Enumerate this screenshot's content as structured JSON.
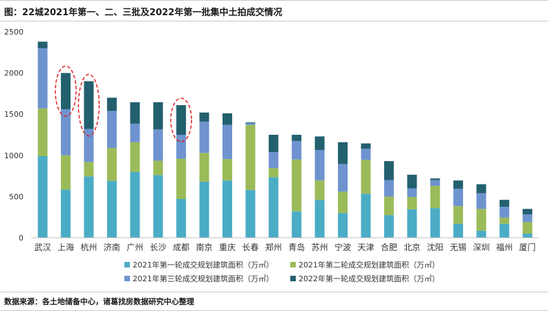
{
  "figure": {
    "title": "图：22城2021年第一、二、三批及2022年第一批集中土拍成交情况",
    "source": "数据来源：各土地储备中心，诸葛找房数据研究中心整理"
  },
  "colors": {
    "series1": "#4bacc6",
    "series2": "#9bbb59",
    "series3": "#6e93cf",
    "series4": "#23606e",
    "axis": "#bfbfbf",
    "highlight": "#e02020"
  },
  "chart_data": {
    "type": "bar",
    "stacked": true,
    "title": "",
    "xlabel": "",
    "ylabel": "",
    "ylim": [
      0,
      2500
    ],
    "yticks": [
      0,
      500,
      1000,
      1500,
      2000,
      2500
    ],
    "grid": false,
    "legend_position": "bottom",
    "categories": [
      "武汉",
      "上海",
      "杭州",
      "济南",
      "广州",
      "长沙",
      "成都",
      "南京",
      "重庆",
      "长春",
      "郑州",
      "青岛",
      "苏州",
      "宁波",
      "天津",
      "合肥",
      "北京",
      "沈阳",
      "无锡",
      "深圳",
      "福州",
      "厦门"
    ],
    "series": [
      {
        "name": "2021年第一轮成交规划建筑面积（万㎡）",
        "color": "#4bacc6",
        "values": [
          990,
          585,
          745,
          690,
          800,
          760,
          470,
          680,
          695,
          580,
          735,
          320,
          460,
          300,
          535,
          275,
          345,
          360,
          170,
          85,
          170,
          50
        ]
      },
      {
        "name": "2021年第二轮成交规划建筑面积（万㎡）",
        "color": "#9bbb59",
        "values": [
          580,
          415,
          175,
          400,
          360,
          175,
          490,
          350,
          260,
          790,
          110,
          630,
          235,
          260,
          410,
          225,
          150,
          270,
          215,
          265,
          75,
          140
        ]
      },
      {
        "name": "2021年第三轮成交规划建筑面积（万㎡）",
        "color": "#6e93cf",
        "values": [
          730,
          560,
          400,
          450,
          225,
          380,
          290,
          380,
          415,
          20,
          195,
          225,
          370,
          335,
          135,
          200,
          105,
          70,
          210,
          190,
          130,
          95
        ]
      },
      {
        "name": "2022年第一轮成交规划建筑面积（万㎡）",
        "color": "#23606e",
        "values": [
          80,
          440,
          580,
          160,
          260,
          330,
          360,
          110,
          140,
          10,
          210,
          75,
          165,
          265,
          65,
          230,
          165,
          20,
          100,
          110,
          85,
          65
        ]
      }
    ],
    "highlighted": [
      "上海",
      "杭州",
      "成都"
    ]
  }
}
